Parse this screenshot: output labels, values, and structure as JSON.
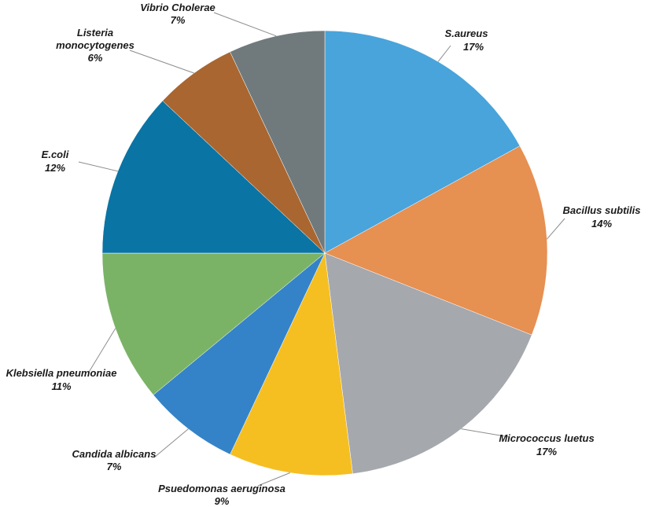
{
  "chart_data": {
    "type": "pie",
    "start_angle_deg": 0,
    "direction": "clockwise",
    "slices": [
      {
        "name": "S.aureus",
        "value": 17,
        "label": "17%",
        "color": "#48a4db"
      },
      {
        "name": "Bacillus subtilis",
        "value": 14,
        "label": "14%",
        "color": "#e69052"
      },
      {
        "name": "Micrococcus luetus",
        "value": 17,
        "label": "17%",
        "color": "#a5a8ad"
      },
      {
        "name": "Psuedomonas aeruginosa",
        "value": 9,
        "label": "9%",
        "color": "#f5bf22"
      },
      {
        "name": "Candida albicans",
        "value": 7,
        "label": "7%",
        "color": "#3483c8"
      },
      {
        "name": "Klebsiella pneumoniae",
        "value": 11,
        "label": "11%",
        "color": "#7bb366"
      },
      {
        "name": "E.coli",
        "value": 12,
        "label": "12%",
        "color": "#0a74a4"
      },
      {
        "name": "Listeria monocytogenes",
        "value": 6,
        "label": "6%",
        "color": "#a96630"
      },
      {
        "name": "Vibrio Cholerae",
        "value": 7,
        "label": "7%",
        "color": "#707a7c"
      }
    ]
  }
}
